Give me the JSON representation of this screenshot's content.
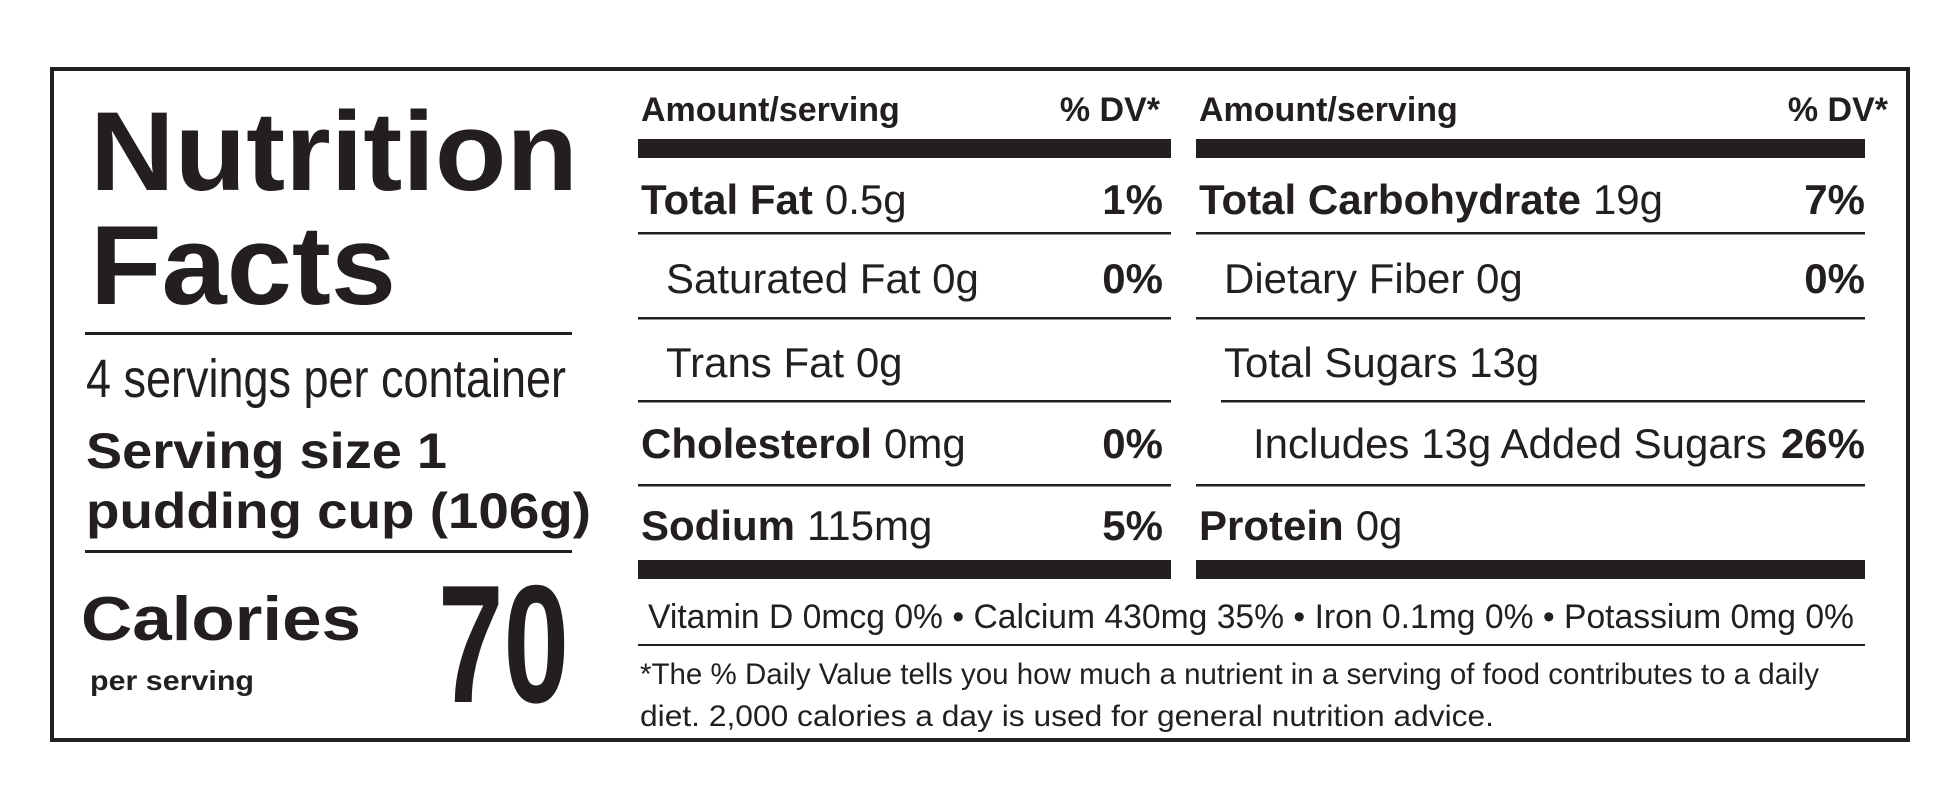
{
  "left_column": {
    "title": [
      "Nutrition",
      "Facts"
    ],
    "servings_per_container": "4 servings per container",
    "serving_size": [
      "Serving size 1",
      "pudding cup (106g)"
    ],
    "calories_label": "Calories",
    "per_serving": "per serving",
    "calories": 70
  },
  "columns": [
    {
      "header": {
        "amount": "Amount/serving",
        "dv": "% DV*"
      },
      "rows": [
        {
          "name": "Total Fat",
          "amount": "0.5g",
          "dv": "1%"
        },
        {
          "name": "Saturated Fat 0g",
          "dv": "0%"
        },
        {
          "name": "Trans Fat 0g"
        },
        {
          "name": "Cholesterol",
          "amount": "0mg",
          "dv": "0%"
        },
        {
          "name": "Sodium",
          "amount": "115mg",
          "dv": "5%"
        }
      ]
    },
    {
      "header": {
        "amount": "Amount/serving",
        "dv": "% DV*"
      },
      "rows": [
        {
          "name": "Total Carbohydrate",
          "amount": "19g",
          "dv": "7%"
        },
        {
          "name": "Dietary Fiber 0g",
          "dv": "0%"
        },
        {
          "name": "Total Sugars 13g"
        },
        {
          "name": "Includes 13g Added Sugars",
          "dv": "26%"
        },
        {
          "name": "Protein",
          "amount": "0g"
        }
      ]
    }
  ],
  "vitamins": "Vitamin D 0mcg 0%  • Calcium 430mg 35% • Iron 0.1mg 0% • Potassium 0mg 0%",
  "footnote": [
    "*The % Daily Value tells you how much a nutrient in a serving of food contributes to a daily",
    "diet. 2,000 calories a day is used for general nutrition advice."
  ]
}
